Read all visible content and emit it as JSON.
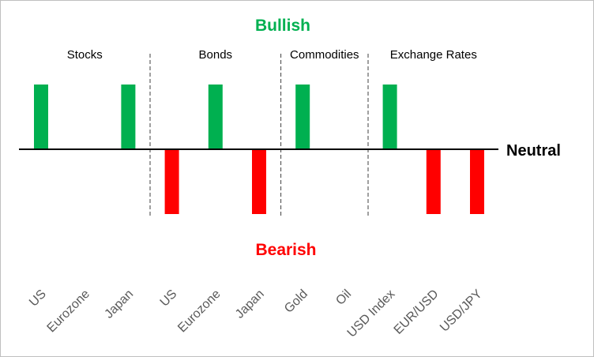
{
  "chart_data": {
    "type": "bar",
    "title_top": "Bullish",
    "title_bottom": "Bearish",
    "baseline_label": "Neutral",
    "categories": [
      "US",
      "Eurozone",
      "Japan",
      "US",
      "Eurozone",
      "Japan",
      "Gold",
      "Oil",
      "USD Index",
      "EUR/USD",
      "USD/JPY"
    ],
    "values": [
      1,
      0,
      1,
      -1,
      1,
      -1,
      1,
      0,
      1,
      -1,
      -1
    ],
    "ylim": [
      -1,
      1
    ],
    "groups": [
      {
        "label": "Stocks",
        "start": 0,
        "end": 2
      },
      {
        "label": "Bonds",
        "start": 3,
        "end": 5
      },
      {
        "label": "Commodities",
        "start": 6,
        "end": 7
      },
      {
        "label": "Exchange Rates",
        "start": 8,
        "end": 10
      }
    ],
    "colors": {
      "bullish": "#00B050",
      "bearish": "#FF0000",
      "axis": "#000000",
      "divider": "#404040",
      "frame": "#bfbfbf"
    }
  }
}
